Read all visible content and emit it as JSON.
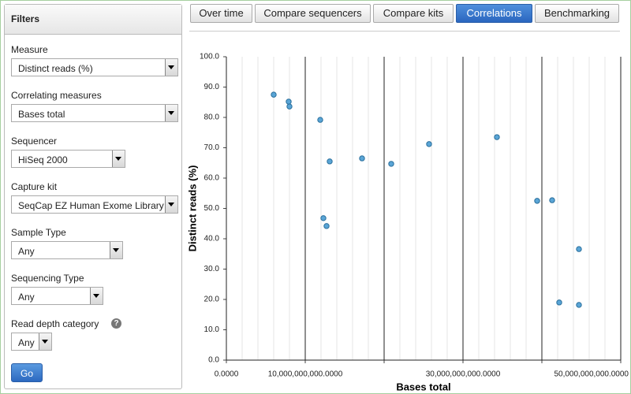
{
  "sidebar": {
    "title": "Filters",
    "fields": [
      {
        "label": "Measure",
        "value": "Distinct reads (%)"
      },
      {
        "label": "Correlating measures",
        "value": "Bases total"
      },
      {
        "label": "Sequencer",
        "value": "HiSeq 2000"
      },
      {
        "label": "Capture kit",
        "value": "SeqCap EZ Human Exome Library"
      },
      {
        "label": "Sample Type",
        "value": "Any"
      },
      {
        "label": "Sequencing Type",
        "value": "Any"
      },
      {
        "label": "Read depth category",
        "value": "Any"
      }
    ],
    "help_icon": "?",
    "button": "Go"
  },
  "tabs": [
    "Over time",
    "Compare sequencers",
    "Compare kits",
    "Correlations",
    "Benchmarking"
  ],
  "active_tab": 3,
  "chart_data": {
    "type": "scatter",
    "x_label": "Bases total",
    "y_label": "Distinct reads (%)",
    "x": [
      6000000000,
      7900000000,
      8000000000,
      11900000000,
      13100000000,
      12300000000,
      12700000000,
      17200000000,
      20900000000,
      25700000000,
      34300000000,
      39400000000,
      41300000000,
      44700000000,
      42200000000,
      44700000000
    ],
    "values": [
      87.5,
      85.2,
      83.6,
      79.2,
      65.5,
      46.8,
      44.2,
      66.5,
      64.7,
      71.2,
      73.5,
      52.5,
      52.7,
      36.6,
      19.0,
      18.2
    ],
    "color": "#5aa5d6",
    "xlim": [
      0,
      50000000000
    ],
    "ylim": [
      0,
      100
    ],
    "xticks": [
      {
        "value": 0,
        "label": "0.0000"
      },
      {
        "value": 10000000000,
        "label": "10,000,000,000.0000"
      },
      {
        "value": 20000000000,
        "label": null
      },
      {
        "value": 30000000000,
        "label": "30,000,000,000.0000"
      },
      {
        "value": 40000000000,
        "label": null
      },
      {
        "value": 50000000000,
        "label": "50,000,000,000.0000"
      }
    ],
    "yticks": [
      {
        "value": 0,
        "label": "0.0"
      },
      {
        "value": 10,
        "label": "10.0"
      },
      {
        "value": 20,
        "label": "20.0"
      },
      {
        "value": 30,
        "label": "30.0"
      },
      {
        "value": 40,
        "label": "40.0"
      },
      {
        "value": 50,
        "label": "50.0"
      },
      {
        "value": 60,
        "label": "60.0"
      },
      {
        "value": 70,
        "label": "70.0"
      },
      {
        "value": 80,
        "label": "80.0"
      },
      {
        "value": 90,
        "label": "90.0"
      },
      {
        "value": 100,
        "label": "100.0"
      }
    ]
  }
}
